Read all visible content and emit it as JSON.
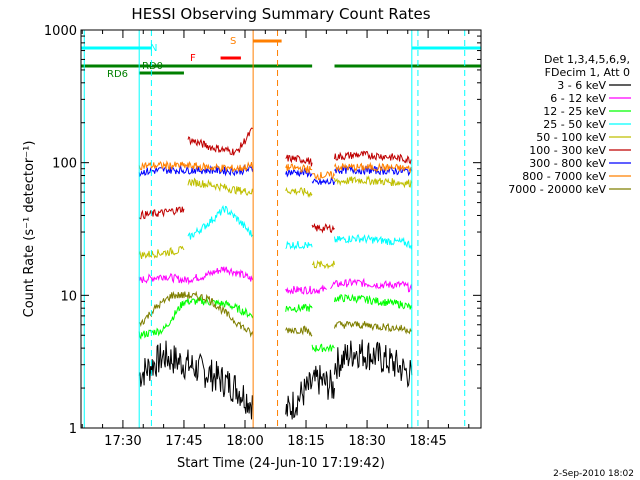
{
  "chart_data": {
    "type": "line",
    "title": "HESSI Observing Summary Count Rates",
    "xlabel": "Start Time (24-Jun-10 17:19:42)",
    "ylabel": "Count Rate (s⁻¹ detector⁻¹)",
    "xlim": [
      "17:19:42",
      "18:58:00"
    ],
    "ylim": [
      1,
      1000
    ],
    "yscale": "log",
    "x_ticks": [
      "17:30",
      "17:45",
      "18:00",
      "18:15",
      "18:30",
      "18:45"
    ],
    "y_ticks": [
      "1",
      "10",
      "100",
      "1000"
    ],
    "legend_header": [
      "Det 1,3,4,5,6,9,",
      "FDecim 1, Att 0"
    ],
    "legend_placement": "right",
    "timestamp": "2-Sep-2010 18:02",
    "flags": [
      {
        "label": "N",
        "color": "#00ffff",
        "segments": [
          [
            "17:19:42",
            "17:37:00"
          ],
          [
            "18:41:00",
            "18:58:00"
          ]
        ]
      },
      {
        "label": "RD0",
        "color": "#007f00",
        "segments": [
          [
            "17:19:42",
            "18:16:30"
          ],
          [
            "18:22:00",
            "18:58:00"
          ]
        ]
      },
      {
        "label": "RD6",
        "color": "#007f00",
        "segments": [
          [
            "17:34:00",
            "17:45:00"
          ]
        ]
      },
      {
        "label": "F",
        "color": "#ff0000",
        "segments": [
          [
            "17:54:00",
            "17:59:00"
          ]
        ]
      },
      {
        "label": "S",
        "color": "#ff7f00",
        "segments": [
          [
            "18:02:00",
            "18:09:00"
          ]
        ]
      }
    ],
    "vlines_solid": [
      {
        "t": "17:20:30",
        "color": "#00ffff"
      },
      {
        "t": "17:34:00",
        "color": "#00ffff"
      },
      {
        "t": "18:02:00",
        "color": "#ff7f00"
      },
      {
        "t": "18:41:00",
        "color": "#00ffff"
      }
    ],
    "vlines_dashed": [
      {
        "t": "17:37:00",
        "color": "#00ffff"
      },
      {
        "t": "18:08:00",
        "color": "#ff7f00"
      },
      {
        "t": "18:42:30",
        "color": "#00ffff"
      },
      {
        "t": "18:54:00",
        "color": "#00ffff"
      }
    ],
    "series": [
      {
        "name": "3 - 6 keV",
        "color": "#000000",
        "segments": [
          {
            "t": [
              "17:34:00",
              "17:40:00",
              "17:46:00",
              "17:52:00",
              "17:58:00",
              "18:02:00"
            ],
            "v": [
              2.5,
              3.5,
              3.0,
              2.5,
              2.0,
              1.5
            ]
          },
          {
            "t": [
              "18:10:00",
              "18:14:00",
              "18:18:00",
              "18:22:00"
            ],
            "v": [
              1.3,
              1.8,
              2.3,
              2.0
            ]
          },
          {
            "t": [
              "18:22:00",
              "18:27:00",
              "18:32:00",
              "18:37:00",
              "18:41:00"
            ],
            "v": [
              3.0,
              3.8,
              3.5,
              3.0,
              2.5
            ]
          }
        ]
      },
      {
        "name": "6 - 12 keV",
        "color": "#ff00ff",
        "segments": [
          {
            "t": [
              "17:34:00",
              "17:40:00",
              "17:45:00",
              "17:50:00",
              "17:55:00",
              "18:00:00",
              "18:02:00"
            ],
            "v": [
              13,
              14,
              13,
              14,
              16,
              14,
              13
            ]
          },
          {
            "t": [
              "18:10:00",
              "18:15:00",
              "18:20:00"
            ],
            "v": [
              11,
              11,
              11
            ]
          },
          {
            "t": [
              "18:21:00",
              "18:27:00",
              "18:33:00",
              "18:39:00",
              "18:41:00"
            ],
            "v": [
              12,
              12.5,
              12,
              12,
              11
            ]
          }
        ]
      },
      {
        "name": "12 - 25 keV",
        "color": "#00ff00",
        "segments": [
          {
            "t": [
              "17:34:00",
              "17:40:00",
              "17:45:00",
              "17:50:00",
              "17:56:00",
              "18:02:00"
            ],
            "v": [
              5,
              5.5,
              9,
              9,
              8.5,
              7
            ]
          },
          {
            "t": [
              "18:10:00",
              "18:15:00",
              "18:16:30"
            ],
            "v": [
              8,
              8,
              8
            ]
          },
          {
            "t": [
              "18:16:30",
              "18:20:00",
              "18:22:00"
            ],
            "v": [
              4,
              4,
              4
            ]
          },
          {
            "t": [
              "18:22:00",
              "18:27:00",
              "18:33:00",
              "18:39:00",
              "18:41:00"
            ],
            "v": [
              9.5,
              9.5,
              9,
              8.5,
              8
            ]
          }
        ]
      },
      {
        "name": "25 - 50 keV",
        "color": "#00ffff",
        "segments": [
          {
            "t": [
              "17:46:00",
              "17:50:00",
              "17:55:00",
              "17:58:00",
              "18:02:00"
            ],
            "v": [
              27,
              33,
              45,
              38,
              28
            ]
          },
          {
            "t": [
              "18:10:00",
              "18:15:00",
              "18:16:30"
            ],
            "v": [
              24,
              24,
              23
            ]
          },
          {
            "t": [
              "18:22:00",
              "18:27:00",
              "18:33:00",
              "18:39:00",
              "18:41:00"
            ],
            "v": [
              26,
              27,
              26,
              25,
              24
            ]
          }
        ]
      },
      {
        "name": "50 - 100 keV",
        "color": "#bfbf00",
        "segments": [
          {
            "t": [
              "17:34:00",
              "17:40:00",
              "17:45:00"
            ],
            "v": [
              20,
              21,
              22
            ]
          },
          {
            "t": [
              "17:46:00",
              "17:52:00",
              "17:58:00",
              "18:02:00"
            ],
            "v": [
              72,
              68,
              62,
              60
            ]
          },
          {
            "t": [
              "18:10:00",
              "18:15:00",
              "18:16:30"
            ],
            "v": [
              62,
              60,
              58
            ]
          },
          {
            "t": [
              "18:16:30",
              "18:22:00"
            ],
            "v": [
              17,
              17
            ]
          },
          {
            "t": [
              "18:22:00",
              "18:28:00",
              "18:34:00",
              "18:41:00"
            ],
            "v": [
              72,
              74,
              72,
              70
            ]
          }
        ]
      },
      {
        "name": "100 - 300 keV",
        "color": "#bf0000",
        "segments": [
          {
            "t": [
              "17:34:00",
              "17:40:00",
              "17:45:00"
            ],
            "v": [
              40,
              42,
              45
            ]
          },
          {
            "t": [
              "17:46:00",
              "17:52:00",
              "17:58:00",
              "18:02:00"
            ],
            "v": [
              150,
              130,
              120,
              180
            ]
          },
          {
            "t": [
              "18:10:00",
              "18:15:00",
              "18:16:30"
            ],
            "v": [
              108,
              105,
              100
            ]
          },
          {
            "t": [
              "18:16:30",
              "18:22:00"
            ],
            "v": [
              32,
              32
            ]
          },
          {
            "t": [
              "18:22:00",
              "18:28:00",
              "18:34:00",
              "18:41:00"
            ],
            "v": [
              110,
              115,
              112,
              105
            ]
          }
        ]
      },
      {
        "name": "300 - 800 keV",
        "color": "#0000ff",
        "segments": [
          {
            "t": [
              "17:34:00",
              "17:40:00",
              "17:45:00",
              "17:52:00",
              "17:58:00",
              "18:02:00"
            ],
            "v": [
              85,
              88,
              88,
              88,
              86,
              90
            ]
          },
          {
            "t": [
              "18:10:00",
              "18:15:00",
              "18:16:30"
            ],
            "v": [
              85,
              84,
              83
            ]
          },
          {
            "t": [
              "18:16:30",
              "18:22:00"
            ],
            "v": [
              70,
              72
            ]
          },
          {
            "t": [
              "18:22:00",
              "18:28:00",
              "18:34:00",
              "18:41:00"
            ],
            "v": [
              88,
              88,
              87,
              86
            ]
          }
        ]
      },
      {
        "name": "800 - 7000 keV",
        "color": "#ff8000",
        "segments": [
          {
            "t": [
              "17:34:00",
              "17:40:00",
              "17:45:00",
              "17:52:00",
              "17:58:00",
              "18:02:00"
            ],
            "v": [
              95,
              95,
              95,
              92,
              90,
              95
            ]
          },
          {
            "t": [
              "18:10:00",
              "18:15:00",
              "18:16:30"
            ],
            "v": [
              92,
              90,
              88
            ]
          },
          {
            "t": [
              "18:16:30",
              "18:22:00"
            ],
            "v": [
              80,
              80
            ]
          },
          {
            "t": [
              "18:22:00",
              "18:28:00",
              "18:34:00",
              "18:41:00"
            ],
            "v": [
              93,
              92,
              92,
              90
            ]
          }
        ]
      },
      {
        "name": "7000 - 20000 keV",
        "color": "#7f7f00",
        "segments": [
          {
            "t": [
              "17:34:00",
              "17:38:00",
              "17:42:00",
              "17:46:00",
              "17:51:00",
              "17:56:00",
              "18:02:00"
            ],
            "v": [
              6,
              8,
              10,
              10,
              9.5,
              7,
              5
            ]
          },
          {
            "t": [
              "18:10:00",
              "18:15:00",
              "18:16:30"
            ],
            "v": [
              5.5,
              5.5,
              5
            ]
          },
          {
            "t": [
              "18:22:00",
              "18:28:00",
              "18:34:00",
              "18:41:00"
            ],
            "v": [
              6,
              6,
              5.8,
              5.5
            ]
          }
        ]
      }
    ]
  }
}
